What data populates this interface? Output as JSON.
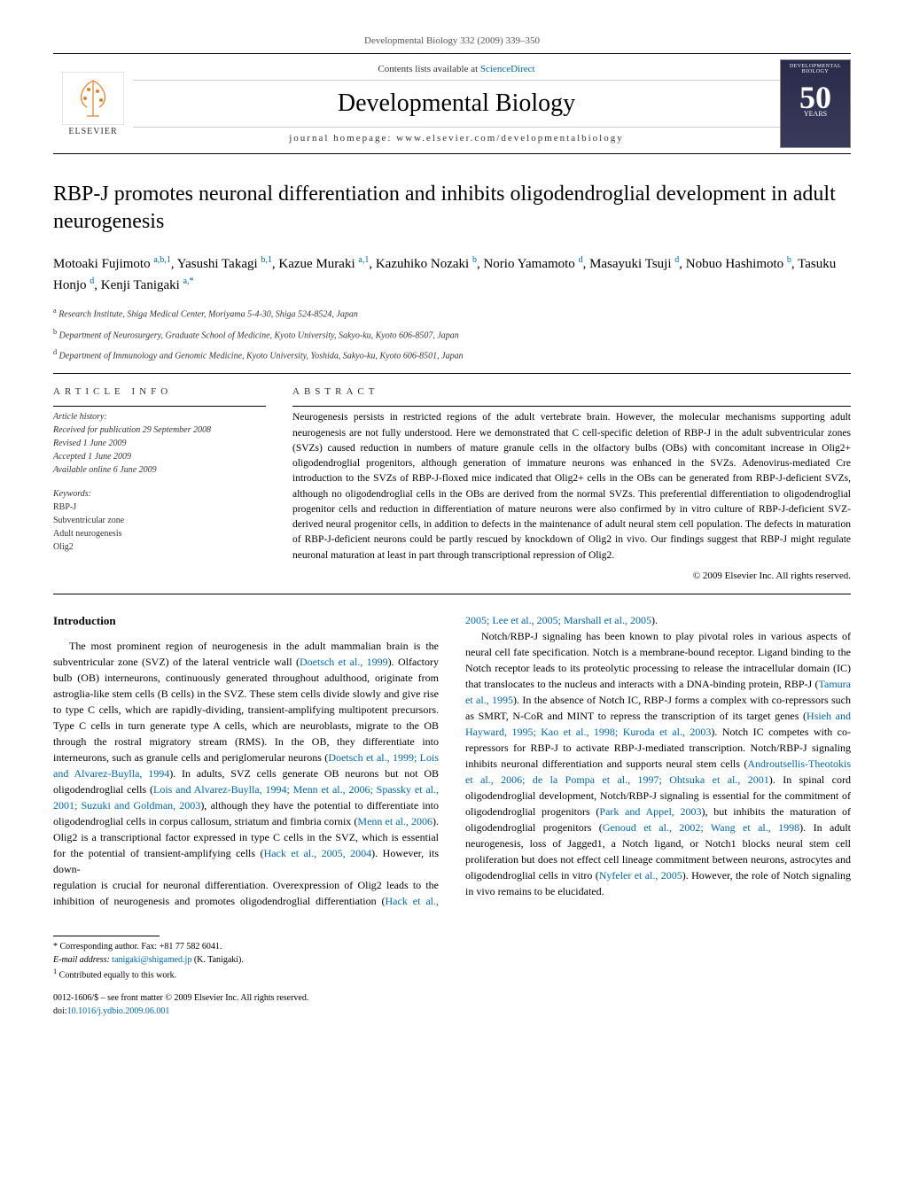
{
  "header": {
    "running_head": "Developmental Biology 332 (2009) 339–350"
  },
  "masthead": {
    "sciencedirect_prefix": "Contents lists available at ",
    "sciencedirect_link": "ScienceDirect",
    "journal_title": "Developmental Biology",
    "homepage_line": "journal homepage: www.elsevier.com/developmentalbiology",
    "elsevier_label": "ELSEVIER",
    "cover_top": "DEVELOPMENTAL BIOLOGY",
    "cover_num": "50",
    "cover_years": "YEARS"
  },
  "article": {
    "title": "RBP-J promotes neuronal differentiation and inhibits oligodendroglial development in adult neurogenesis",
    "authors_html": "Motoaki Fujimoto <sup>a,b,1</sup>, Yasushi Takagi <sup>b,1</sup>, Kazue Muraki <sup>a,1</sup>, Kazuhiko Nozaki <sup>b</sup>, Norio Yamamoto <sup>d</sup>, Masayuki Tsuji <sup>d</sup>, Nobuo Hashimoto <sup>b</sup>, Tasuku Honjo <sup>d</sup>, Kenji Tanigaki <sup>a,</sup><sup class='cor'>*</sup>",
    "affiliations": [
      "a Research Institute, Shiga Medical Center, Moriyama 5-4-30, Shiga 524-8524, Japan",
      "b Department of Neurosurgery, Graduate School of Medicine, Kyoto University, Sakyo-ku, Kyoto 606-8507, Japan",
      "d Department of Immunology and Genomic Medicine, Kyoto University, Yoshida, Sakyo-ku, Kyoto 606-8501, Japan"
    ]
  },
  "info": {
    "label": "ARTICLE INFO",
    "history_label": "Article history:",
    "history": [
      "Received for publication 29 September 2008",
      "Revised 1 June 2009",
      "Accepted 1 June 2009",
      "Available online 6 June 2009"
    ],
    "keywords_label": "Keywords:",
    "keywords": [
      "RBP-J",
      "Subventricular zone",
      "Adult neurogenesis",
      "Olig2"
    ]
  },
  "abstract": {
    "label": "ABSTRACT",
    "text": "Neurogenesis persists in restricted regions of the adult vertebrate brain. However, the molecular mechanisms supporting adult neurogenesis are not fully understood. Here we demonstrated that C cell-specific deletion of RBP-J in the adult subventricular zones (SVZs) caused reduction in numbers of mature granule cells in the olfactory bulbs (OBs) with concomitant increase in Olig2+ oligodendroglial progenitors, although generation of immature neurons was enhanced in the SVZs. Adenovirus-mediated Cre introduction to the SVZs of RBP-J-floxed mice indicated that Olig2+ cells in the OBs can be generated from RBP-J-deficient SVZs, although no oligodendroglial cells in the OBs are derived from the normal SVZs. This preferential differentiation to oligodendroglial progenitor cells and reduction in differentiation of mature neurons were also confirmed by in vitro culture of RBP-J-deficient SVZ-derived neural progenitor cells, in addition to defects in the maintenance of adult neural stem cell population. The defects in maturation of RBP-J-deficient neurons could be partly rescued by knockdown of Olig2 in vivo. Our findings suggest that RBP-J might regulate neuronal maturation at least in part through transcriptional repression of Olig2.",
    "copyright": "© 2009 Elsevier Inc. All rights reserved."
  },
  "body": {
    "intro_heading": "Introduction",
    "para1": "The most prominent region of neurogenesis in the adult mammalian brain is the subventricular zone (SVZ) of the lateral ventricle wall (Doetsch et al., 1999). Olfactory bulb (OB) interneurons, continuously generated throughout adulthood, originate from astroglia-like stem cells (B cells) in the SVZ. These stem cells divide slowly and give rise to type C cells, which are rapidly-dividing, transient-amplifying multipotent precursors. Type C cells in turn generate type A cells, which are neuroblasts, migrate to the OB through the rostral migratory stream (RMS). In the OB, they differentiate into interneurons, such as granule cells and periglomerular neurons (Doetsch et al., 1999; Lois and Alvarez-Buylla, 1994). In adults, SVZ cells generate OB neurons but not OB oligodendroglial cells (Lois and Alvarez-Buylla, 1994; Menn et al., 2006; Spassky et al., 2001; Suzuki and Goldman, 2003), although they have the potential to differentiate into oligodendroglial cells in corpus callosum, striatum and fimbria cornix (Menn et al., 2006). Olig2 is a transcriptional factor expressed in type C cells in the SVZ, which is essential for the potential of transient-amplifying cells (Hack et al., 2005, 2004). However, its down-",
    "para2": "regulation is crucial for neuronal differentiation. Overexpression of Olig2 leads to the inhibition of neurogenesis and promotes oligodendroglial differentiation (Hack et al., 2005; Lee et al., 2005; Marshall et al., 2005).",
    "para3": "Notch/RBP-J signaling has been known to play pivotal roles in various aspects of neural cell fate specification. Notch is a membrane-bound receptor. Ligand binding to the Notch receptor leads to its proteolytic processing to release the intracellular domain (IC) that translocates to the nucleus and interacts with a DNA-binding protein, RBP-J (Tamura et al., 1995). In the absence of Notch IC, RBP-J forms a complex with co-repressors such as SMRT, N-CoR and MINT to repress the transcription of its target genes (Hsieh and Hayward, 1995; Kao et al., 1998; Kuroda et al., 2003). Notch IC competes with co-repressors for RBP-J to activate RBP-J-mediated transcription. Notch/RBP-J signaling inhibits neuronal differentiation and supports neural stem cells (Androutsellis-Theotokis et al., 2006; de la Pompa et al., 1997; Ohtsuka et al., 2001). In spinal cord oligodendroglial development, Notch/RBP-J signaling is essential for the commitment of oligodendroglial progenitors (Park and Appel, 2003), but inhibits the maturation of oligodendroglial progenitors (Genoud et al., 2002; Wang et al., 1998). In adult neurogenesis, loss of Jagged1, a Notch ligand, or Notch1 blocks neural stem cell proliferation but does not effect cell lineage commitment between neurons, astrocytes and oligodendroglial cells in vitro (Nyfeler et al., 2005). However, the role of Notch signaling in vivo remains to be elucidated."
  },
  "footer": {
    "corresponding": "* Corresponding author. Fax: +81 77 582 6041.",
    "email_label": "E-mail address: ",
    "email": "tanigaki@shigamed.jp",
    "email_suffix": " (K. Tanigaki).",
    "contrib": "1 Contributed equally to this work.",
    "frontmatter": "0012-1606/$ – see front matter © 2009 Elsevier Inc. All rights reserved.",
    "doi_label": "doi:",
    "doi": "10.1016/j.ydbio.2009.06.001"
  }
}
